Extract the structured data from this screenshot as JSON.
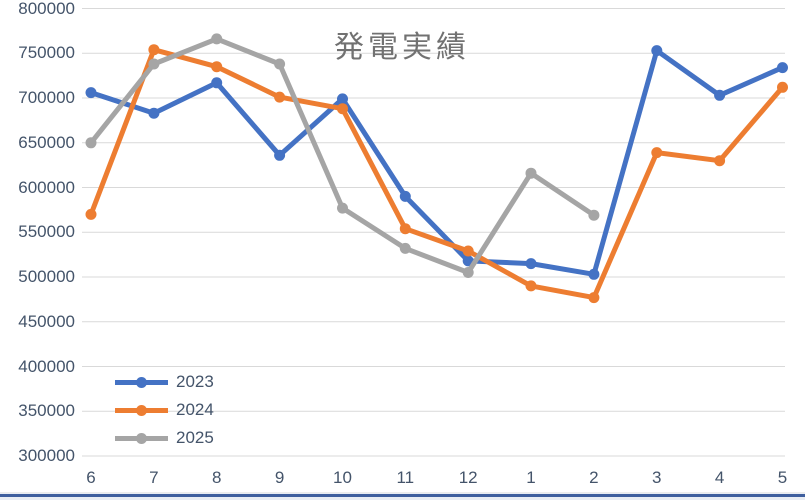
{
  "window": {
    "bottom_border_color": "#3f5f9e"
  },
  "chart_data": {
    "type": "line",
    "title": "発電実績",
    "title_color": "#717171",
    "categories": [
      "6",
      "7",
      "8",
      "9",
      "10",
      "11",
      "12",
      "1",
      "2",
      "3",
      "4",
      "5"
    ],
    "series": [
      {
        "name": "2023",
        "color": "#4472C4",
        "values": [
          706000,
          683000,
          717000,
          636000,
          699000,
          590000,
          518000,
          515000,
          503000,
          753000,
          703000,
          734000
        ]
      },
      {
        "name": "2024",
        "color": "#ED7D31",
        "values": [
          570000,
          754000,
          735000,
          701000,
          688000,
          554000,
          529000,
          490000,
          477000,
          639000,
          630000,
          712000
        ]
      },
      {
        "name": "2025",
        "color": "#A5A5A5",
        "values": [
          650000,
          738000,
          766000,
          738000,
          577000,
          532000,
          505000,
          616000,
          569000,
          null,
          null,
          null
        ]
      }
    ],
    "ylim": [
      300000,
      800000
    ],
    "y_tick_step": 50000,
    "y_ticks": [
      "800000",
      "750000",
      "700000",
      "650000",
      "600000",
      "550000",
      "500000",
      "450000",
      "400000",
      "350000",
      "300000"
    ],
    "x_ticks": [
      "6",
      "7",
      "8",
      "9",
      "10",
      "11",
      "12",
      "1",
      "2",
      "3",
      "4",
      "5"
    ],
    "grid": true,
    "gridline_color": "#D9D9D9",
    "axis_label_color": "#44546A",
    "legend": {
      "position": "bottom-left-inside",
      "entries": [
        "2023",
        "2024",
        "2025"
      ]
    }
  }
}
